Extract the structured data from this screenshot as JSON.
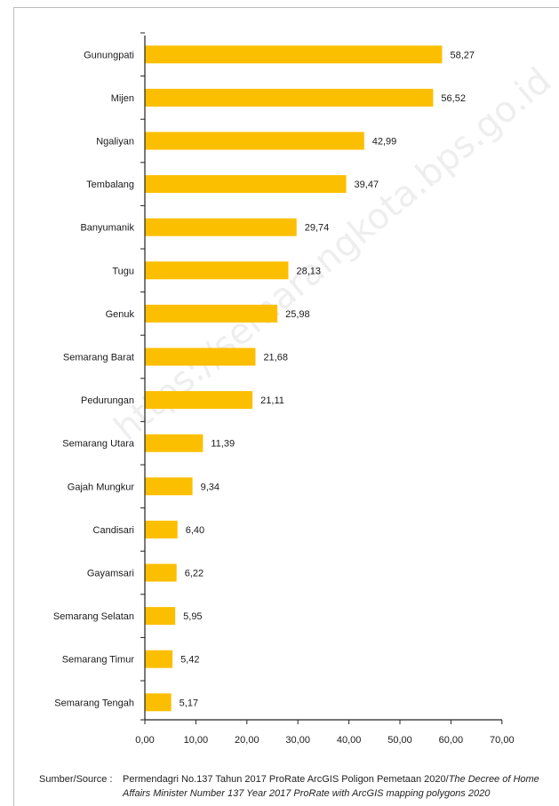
{
  "chart_data": {
    "type": "bar",
    "orientation": "horizontal",
    "categories": [
      "Gunungpati",
      "Mijen",
      "Ngaliyan",
      "Tembalang",
      "Banyumanik",
      "Tugu",
      "Genuk",
      "Semarang Barat",
      "Pedurungan",
      "Semarang Utara",
      "Gajah Mungkur",
      "Candisari",
      "Gayamsari",
      "Semarang Selatan",
      "Semarang Timur",
      "Semarang Tengah"
    ],
    "values": [
      58.27,
      56.52,
      42.99,
      39.47,
      29.74,
      28.13,
      25.98,
      21.68,
      21.11,
      11.39,
      9.34,
      6.4,
      6.22,
      5.95,
      5.42,
      5.17
    ],
    "value_labels": [
      "58,27",
      "56,52",
      "42,99",
      "39,47",
      "29,74",
      "28,13",
      "25,98",
      "21,68",
      "21,11",
      "11,39",
      "9,34",
      "6,40",
      "6,22",
      "5,95",
      "5,42",
      "5,17"
    ],
    "xticks": [
      "0,00",
      "10,00",
      "20,00",
      "30,00",
      "40,00",
      "50,00",
      "60,00",
      "70,00"
    ],
    "xlim": [
      0,
      70
    ],
    "title": "",
    "xlabel": "",
    "ylabel": "",
    "grid": false,
    "bar_color": "#fcbf00"
  },
  "source": {
    "label": "Sumber/Source :",
    "text_id": "Permendagri No.137 Tahun 2017 ProRate ArcGIS Poligon Pemetaan 2020/",
    "text_en": "The Decree of Home Affairs Minister Number 137 Year 2017 ProRate with ArcGIS mapping polygons 2020"
  },
  "watermark": "https://semarangkota.bps.go.id"
}
